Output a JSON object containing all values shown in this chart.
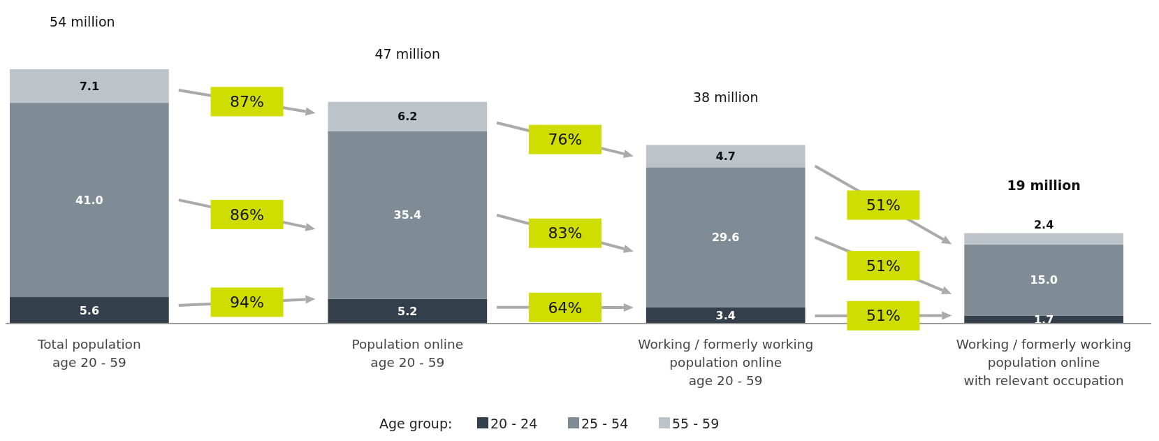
{
  "chart_data": {
    "type": "bar",
    "stacked": true,
    "categories": [
      "Total population\nage 20 - 59",
      "Population online\nage 20 - 59",
      "Working / formerly working\npopulation online\nage 20 - 59",
      "Working / formerly working\npopulation online\nwith relevant occupation"
    ],
    "series": [
      {
        "name": "20 - 24",
        "color": "#333f4a",
        "values": [
          5.6,
          5.2,
          3.4,
          1.7
        ],
        "value_labels": [
          "5.6",
          "5.2",
          "3.4",
          "1.7"
        ]
      },
      {
        "name": "25 - 54",
        "color": "#7f8c96",
        "values": [
          41.0,
          35.4,
          29.6,
          15.0
        ],
        "value_labels": [
          "41.0",
          "35.4",
          "29.6",
          "15.0"
        ]
      },
      {
        "name": "55 - 59",
        "color": "#bcc3c9",
        "values": [
          7.1,
          6.2,
          4.7,
          2.4
        ],
        "value_labels": [
          "7.1",
          "6.2",
          "4.7",
          "2.4"
        ]
      }
    ],
    "totals": [
      "54 million",
      "47 million",
      "38 million",
      "19 million"
    ],
    "annotations": [
      "87%",
      "86%",
      "94%",
      "76%",
      "83%",
      "64%",
      "51%",
      "51%",
      "51%"
    ],
    "legend_title": "Age group:",
    "legend": "bottom"
  }
}
